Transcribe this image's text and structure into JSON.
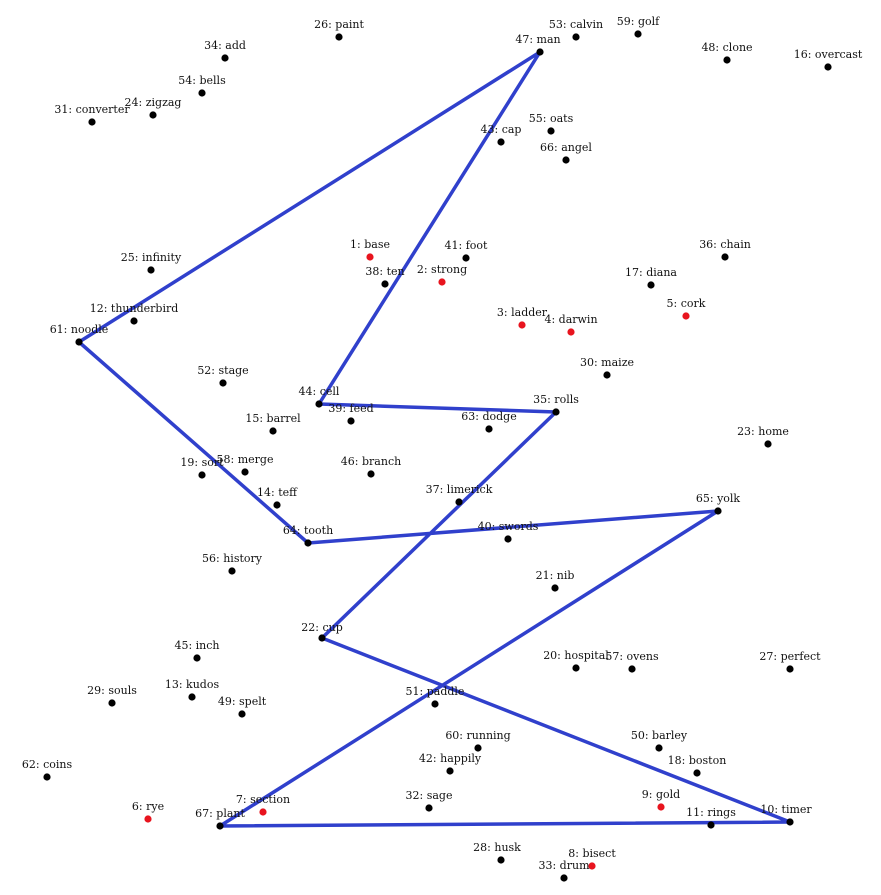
{
  "colors": {
    "background": "#ffffff",
    "dot_default": "#000000",
    "dot_highlight": "#e8141e",
    "path": "#3040cc"
  },
  "points": [
    {
      "id": "1",
      "label": "1: base",
      "highlight": true
    },
    {
      "id": "2",
      "label": "2: strong",
      "highlight": true
    },
    {
      "id": "3",
      "label": "3: ladder",
      "highlight": true
    },
    {
      "id": "4",
      "label": "4: darwin",
      "highlight": true
    },
    {
      "id": "5",
      "label": "5: cork",
      "highlight": true
    },
    {
      "id": "6",
      "label": "6: rye",
      "highlight": true
    },
    {
      "id": "7",
      "label": "7: section",
      "highlight": true
    },
    {
      "id": "8",
      "label": "8: bisect",
      "highlight": true
    },
    {
      "id": "9",
      "label": "9: gold",
      "highlight": true
    },
    {
      "id": "10",
      "label": "10: timer",
      "highlight": false
    },
    {
      "id": "11",
      "label": "11: rings",
      "highlight": false
    },
    {
      "id": "12",
      "label": "12: thunderbird",
      "highlight": false
    },
    {
      "id": "13",
      "label": "13: kudos",
      "highlight": false
    },
    {
      "id": "14",
      "label": "14: teff",
      "highlight": false
    },
    {
      "id": "15",
      "label": "15: barrel",
      "highlight": false
    },
    {
      "id": "16",
      "label": "16: overcast",
      "highlight": false
    },
    {
      "id": "17",
      "label": "17: diana",
      "highlight": false
    },
    {
      "id": "18",
      "label": "18: boston",
      "highlight": false
    },
    {
      "id": "19",
      "label": "19: sort",
      "highlight": false
    },
    {
      "id": "20",
      "label": "20: hospital",
      "highlight": false
    },
    {
      "id": "21",
      "label": "21: nib",
      "highlight": false
    },
    {
      "id": "22",
      "label": "22: cup",
      "highlight": false
    },
    {
      "id": "23",
      "label": "23: home",
      "highlight": false
    },
    {
      "id": "24",
      "label": "24: zigzag",
      "highlight": false
    },
    {
      "id": "25",
      "label": "25: infinity",
      "highlight": false
    },
    {
      "id": "26",
      "label": "26: paint",
      "highlight": false
    },
    {
      "id": "27",
      "label": "27: perfect",
      "highlight": false
    },
    {
      "id": "28",
      "label": "28: husk",
      "highlight": false
    },
    {
      "id": "29",
      "label": "29: souls",
      "highlight": false
    },
    {
      "id": "30",
      "label": "30: maize",
      "highlight": false
    },
    {
      "id": "31",
      "label": "31: converter",
      "highlight": false
    },
    {
      "id": "32",
      "label": "32: sage",
      "highlight": false
    },
    {
      "id": "33",
      "label": "33: drum",
      "highlight": false
    },
    {
      "id": "34",
      "label": "34: add",
      "highlight": false
    },
    {
      "id": "35",
      "label": "35: rolls",
      "highlight": false
    },
    {
      "id": "36",
      "label": "36: chain",
      "highlight": false
    },
    {
      "id": "37",
      "label": "37: limerick",
      "highlight": false
    },
    {
      "id": "38",
      "label": "38: ten",
      "highlight": false
    },
    {
      "id": "39",
      "label": "39: feed",
      "highlight": false
    },
    {
      "id": "40",
      "label": "40: swords",
      "highlight": false
    },
    {
      "id": "41",
      "label": "41: foot",
      "highlight": false
    },
    {
      "id": "42",
      "label": "42: happily",
      "highlight": false
    },
    {
      "id": "43",
      "label": "43: cap",
      "highlight": false
    },
    {
      "id": "44",
      "label": "44: cell",
      "highlight": false
    },
    {
      "id": "45",
      "label": "45: inch",
      "highlight": false
    },
    {
      "id": "46",
      "label": "46: branch",
      "highlight": false
    },
    {
      "id": "47",
      "label": "47: man",
      "highlight": false
    },
    {
      "id": "48",
      "label": "48: clone",
      "highlight": false
    },
    {
      "id": "49",
      "label": "49: spelt",
      "highlight": false
    },
    {
      "id": "50",
      "label": "50: barley",
      "highlight": false
    },
    {
      "id": "51",
      "label": "51: paddle",
      "highlight": false
    },
    {
      "id": "52",
      "label": "52: stage",
      "highlight": false
    },
    {
      "id": "53",
      "label": "53: calvin",
      "highlight": false
    },
    {
      "id": "54",
      "label": "54: bells",
      "highlight": false
    },
    {
      "id": "55",
      "label": "55: oats",
      "highlight": false
    },
    {
      "id": "56",
      "label": "56: history",
      "highlight": false
    },
    {
      "id": "57",
      "label": "57: ovens",
      "highlight": false
    },
    {
      "id": "58",
      "label": "58: merge",
      "highlight": false
    },
    {
      "id": "59",
      "label": "59: golf",
      "highlight": false
    },
    {
      "id": "60",
      "label": "60: running",
      "highlight": false
    },
    {
      "id": "61",
      "label": "61: noodle",
      "highlight": false
    },
    {
      "id": "62",
      "label": "62: coins",
      "highlight": false
    },
    {
      "id": "63",
      "label": "63: dodge",
      "highlight": false
    },
    {
      "id": "64",
      "label": "64: tooth",
      "highlight": false
    },
    {
      "id": "65",
      "label": "65: yolk",
      "highlight": false
    },
    {
      "id": "66",
      "label": "66: angel",
      "highlight": false
    },
    {
      "id": "67",
      "label": "67: plant",
      "highlight": false
    }
  ],
  "path_order": [
    "47",
    "61",
    "64",
    "65",
    "67",
    "10",
    "22",
    "35",
    "44",
    "47"
  ]
}
